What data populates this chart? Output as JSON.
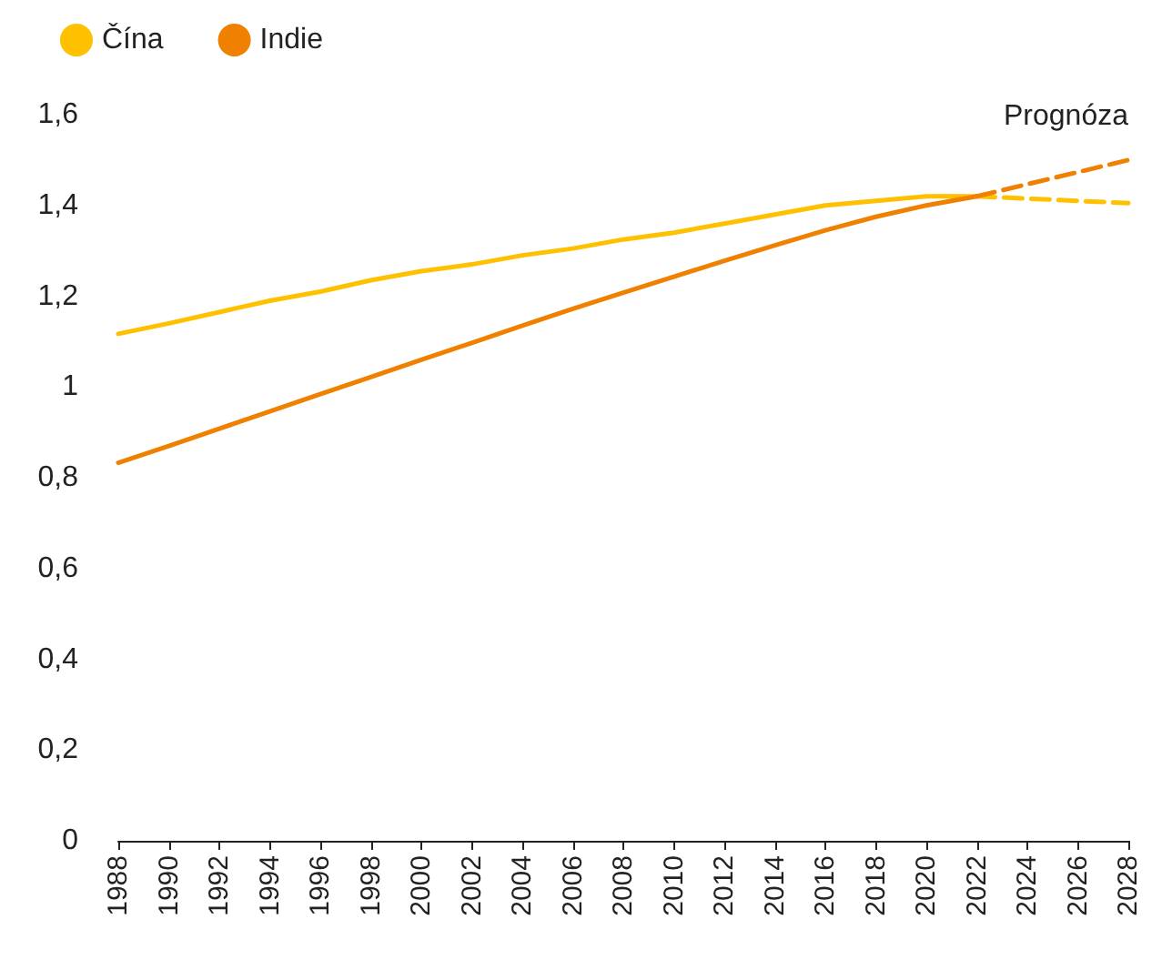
{
  "chart_data": {
    "type": "line",
    "legend": "top left",
    "grid": false,
    "marker": "none",
    "annotations": [
      "Prognóza"
    ],
    "xlim": [
      1988,
      2028
    ],
    "xticks": [
      1988,
      1990,
      1992,
      1994,
      1996,
      1998,
      2000,
      2002,
      2004,
      2006,
      2008,
      2010,
      2012,
      2014,
      2016,
      2018,
      2020,
      2022,
      2024,
      2026,
      2028
    ],
    "ylim": [
      0,
      1.6
    ],
    "yticks": [
      0,
      {
        "value": 0.2,
        "label": "0,2"
      },
      {
        "value": 0.4,
        "label": "0,4"
      },
      {
        "value": 0.6,
        "label": "0,6"
      },
      {
        "value": 0.8,
        "label": "0,8"
      },
      1,
      {
        "value": 1.2,
        "label": "1,2"
      },
      {
        "value": 1.4,
        "label": "1,4"
      },
      {
        "value": 1.6,
        "label": "1,6"
      }
    ],
    "series": [
      {
        "name": "Čína",
        "color": "#ffc000",
        "line_style": "solid",
        "x": [
          1988,
          1990,
          1992,
          1994,
          1996,
          1998,
          2000,
          2002,
          2004,
          2006,
          2008,
          2010,
          2012,
          2014,
          2016,
          2018,
          2020,
          2022
        ],
        "values": [
          1.117,
          1.14,
          1.165,
          1.19,
          1.21,
          1.235,
          1.255,
          1.27,
          1.29,
          1.305,
          1.325,
          1.34,
          1.36,
          1.38,
          1.4,
          1.41,
          1.42,
          1.42
        ]
      },
      {
        "name": "Indie",
        "color": "#f08000",
        "line_style": "solid",
        "x": [
          1988,
          1990,
          1992,
          1994,
          1996,
          1998,
          2000,
          2002,
          2004,
          2006,
          2008,
          2010,
          2012,
          2014,
          2016,
          2018,
          2020,
          2022
        ],
        "values": [
          0.833,
          0.87,
          0.908,
          0.946,
          0.984,
          1.022,
          1.06,
          1.097,
          1.135,
          1.172,
          1.208,
          1.243,
          1.278,
          1.312,
          1.345,
          1.375,
          1.4,
          1.42
        ]
      },
      {
        "color": "#ffc000",
        "line_style": "dashed",
        "x": [
          2022,
          2028
        ],
        "values": [
          1.42,
          1.405
        ]
      },
      {
        "color": "#f08000",
        "line_style": "dashed",
        "x": [
          2022,
          2028
        ],
        "values": [
          1.42,
          1.5
        ]
      }
    ]
  }
}
